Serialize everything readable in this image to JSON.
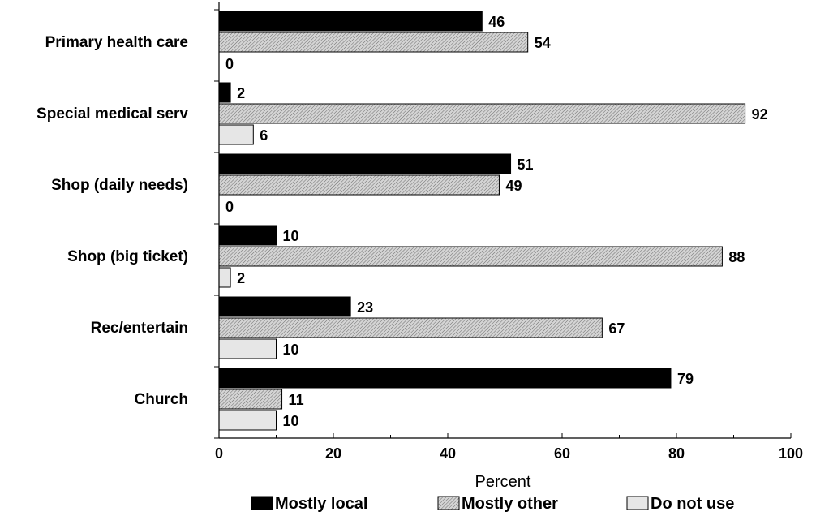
{
  "chart_data": {
    "type": "bar",
    "orientation": "horizontal",
    "categories": [
      "Primary health care",
      "Special medical serv",
      "Shop (daily needs)",
      "Shop (big ticket)",
      "Rec/entertain",
      "Church"
    ],
    "series": [
      {
        "name": "Mostly local",
        "values": [
          46,
          2,
          51,
          10,
          23,
          79
        ],
        "color": "#000000"
      },
      {
        "name": "Mostly other",
        "values": [
          54,
          92,
          49,
          88,
          67,
          11
        ],
        "color": "#bdbdbd",
        "pattern": "diagonal-hatch"
      },
      {
        "name": "Do not use",
        "values": [
          0,
          6,
          0,
          2,
          10,
          10
        ],
        "color": "#e6e6e6"
      }
    ],
    "xlabel": "Percent",
    "ylabel": "",
    "xlim": [
      0,
      100
    ],
    "xticks": [
      0,
      20,
      40,
      60,
      80,
      100
    ],
    "grid": false,
    "legend_position": "bottom"
  }
}
